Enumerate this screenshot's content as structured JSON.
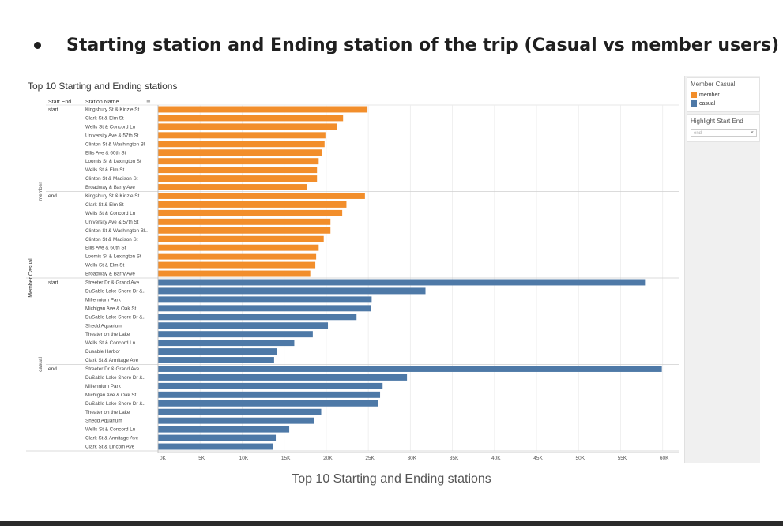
{
  "heading": "Starting station and Ending station of the trip (Casual vs member users)",
  "caption": "Top 10 Starting and Ending stations",
  "chart_data": {
    "type": "bar",
    "orientation": "horizontal",
    "title": "Top 10 Starting and Ending stations",
    "column_headers": [
      "Start End",
      "Station Name"
    ],
    "row_axis_label": "Member Casual",
    "xlim": [
      0,
      62000
    ],
    "x_ticks": [
      0,
      5000,
      10000,
      15000,
      20000,
      25000,
      30000,
      35000,
      40000,
      45000,
      50000,
      55000,
      60000
    ],
    "x_tick_labels": [
      "0K",
      "5K",
      "10K",
      "15K",
      "20K",
      "25K",
      "30K",
      "35K",
      "40K",
      "45K",
      "50K",
      "55K",
      "60K"
    ],
    "grid": true,
    "legend": {
      "title": "Member Casual",
      "position": "right",
      "items": [
        {
          "label": "member",
          "color": "#f28e2b"
        },
        {
          "label": "casual",
          "color": "#4e79a7"
        }
      ]
    },
    "groups": [
      {
        "member_casual": "member",
        "start_end": "start",
        "stations": [
          {
            "name": "Kingsbury St & Kinzie St",
            "value": 24900
          },
          {
            "name": "Clark St & Elm St",
            "value": 22000
          },
          {
            "name": "Wells St & Concord Ln",
            "value": 21300
          },
          {
            "name": "University Ave & 57th St",
            "value": 19900
          },
          {
            "name": "Clinton St & Washington Bl",
            "value": 19800
          },
          {
            "name": "Ellis Ave & 60th St",
            "value": 19500
          },
          {
            "name": "Loomis St & Lexington St",
            "value": 19100
          },
          {
            "name": "Wells St & Elm St",
            "value": 18900
          },
          {
            "name": "Clinton St & Madison St",
            "value": 18900
          },
          {
            "name": "Broadway & Barry Ave",
            "value": 17700
          }
        ]
      },
      {
        "member_casual": "member",
        "start_end": "end",
        "stations": [
          {
            "name": "Kingsbury St & Kinzie St",
            "value": 24600
          },
          {
            "name": "Clark St & Elm St",
            "value": 22400
          },
          {
            "name": "Wells St & Concord Ln",
            "value": 21900
          },
          {
            "name": "University Ave & 57th St",
            "value": 20500
          },
          {
            "name": "Clinton St & Washington Bl..",
            "value": 20500
          },
          {
            "name": "Clinton St & Madison St",
            "value": 19700
          },
          {
            "name": "Ellis Ave & 60th St",
            "value": 19100
          },
          {
            "name": "Loomis St & Lexington St",
            "value": 18800
          },
          {
            "name": "Wells St & Elm St",
            "value": 18700
          },
          {
            "name": "Broadway & Barry Ave",
            "value": 18100
          }
        ]
      },
      {
        "member_casual": "casual",
        "start_end": "start",
        "stations": [
          {
            "name": "Streeter Dr & Grand Ave",
            "value": 57900
          },
          {
            "name": "DuSable Lake Shore Dr &..",
            "value": 31800
          },
          {
            "name": "Millennium Park",
            "value": 25400
          },
          {
            "name": "Michigan Ave & Oak St",
            "value": 25300
          },
          {
            "name": "DuSable Lake Shore Dr &..",
            "value": 23600
          },
          {
            "name": "Shedd Aquarium",
            "value": 20200
          },
          {
            "name": "Theater on the Lake",
            "value": 18400
          },
          {
            "name": "Wells St & Concord Ln",
            "value": 16200
          },
          {
            "name": "Dusable Harbor",
            "value": 14100
          },
          {
            "name": "Clark St & Armitage Ave",
            "value": 13800
          }
        ]
      },
      {
        "member_casual": "casual",
        "start_end": "end",
        "stations": [
          {
            "name": "Streeter Dr & Grand Ave",
            "value": 59900
          },
          {
            "name": "DuSable Lake Shore Dr &..",
            "value": 29600
          },
          {
            "name": "Millennium Park",
            "value": 26700
          },
          {
            "name": "Michigan Ave & Oak St",
            "value": 26400
          },
          {
            "name": "DuSable Lake Shore Dr &..",
            "value": 26200
          },
          {
            "name": "Theater on the Lake",
            "value": 19400
          },
          {
            "name": "Shedd Aquarium",
            "value": 18600
          },
          {
            "name": "Wells St & Concord Ln",
            "value": 15600
          },
          {
            "name": "Clark St & Armitage Ave",
            "value": 14000
          },
          {
            "name": "Clark St & Lincoln Ave",
            "value": 13700
          }
        ]
      }
    ]
  },
  "highlight": {
    "title": "Highlight Start End",
    "placeholder": "end",
    "clear_icon": "×"
  }
}
